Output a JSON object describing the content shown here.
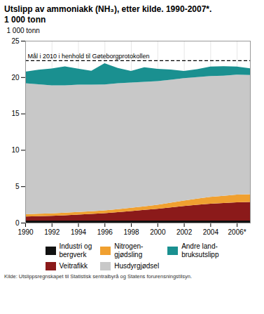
{
  "chart_data": {
    "type": "area",
    "stacked": true,
    "title": "Utslipp av ammoniakk (NH₃), etter kilde. 1990-2007*.",
    "subtitle": "1 000 tonn",
    "ylabel": "1 000 tonn",
    "source": "Kilde: Utslippsregnskapet til Statistisk sentralbyrå og Statens forurensningstilsyn.",
    "x": [
      1990,
      1991,
      1992,
      1993,
      1994,
      1995,
      1996,
      1997,
      1998,
      1999,
      2000,
      2001,
      2002,
      2003,
      2004,
      2005,
      2006,
      2007
    ],
    "series": [
      {
        "name": "Industri og\nbergverk",
        "color": "#111111",
        "values": [
          0.3,
          0.3,
          0.3,
          0.3,
          0.3,
          0.3,
          0.3,
          0.3,
          0.3,
          0.3,
          0.3,
          0.3,
          0.3,
          0.3,
          0.3,
          0.3,
          0.3,
          0.3
        ]
      },
      {
        "name": "Veitrafikk",
        "color": "#8b1a1a",
        "values": [
          0.55,
          0.6,
          0.65,
          0.72,
          0.8,
          0.9,
          1.0,
          1.15,
          1.3,
          1.45,
          1.6,
          1.8,
          2.0,
          2.15,
          2.3,
          2.4,
          2.5,
          2.55
        ]
      },
      {
        "name": "Nitrogen-\ngjødsling",
        "color": "#f0a030",
        "values": [
          0.3,
          0.32,
          0.33,
          0.35,
          0.36,
          0.37,
          0.4,
          0.42,
          0.45,
          0.5,
          0.55,
          0.65,
          0.75,
          0.85,
          0.95,
          1.0,
          1.05,
          1.05
        ]
      },
      {
        "name": "Husdyrgjødsel",
        "color": "#c8c8c8",
        "values": [
          18.0,
          17.8,
          17.6,
          17.5,
          17.5,
          17.4,
          17.3,
          17.3,
          17.2,
          17.1,
          17.0,
          16.9,
          16.8,
          16.7,
          16.6,
          16.5,
          16.5,
          16.4
        ]
      },
      {
        "name": "Andre land-\nbruksutslipp",
        "color": "#1a9090",
        "values": [
          1.6,
          2.0,
          2.3,
          2.6,
          2.2,
          1.9,
          2.9,
          2.1,
          1.6,
          2.0,
          1.7,
          1.4,
          1.0,
          1.1,
          1.3,
          1.3,
          1.1,
          0.9
        ]
      }
    ],
    "annotations": [
      {
        "text": "Mål i 2010 i henhold til Gøteborgprotokollen",
        "y": 22.3,
        "line_style": "dashed"
      }
    ],
    "xlim": [
      1990,
      2007
    ],
    "xticks": [
      1990,
      1992,
      1994,
      1996,
      1998,
      2000,
      2002,
      2004,
      {
        "value": 2006,
        "label": "2006*"
      }
    ],
    "ylim": [
      0,
      25
    ],
    "yticks": [
      0,
      5,
      10,
      15,
      20,
      25
    ],
    "grid": true,
    "legend": "bottom"
  }
}
